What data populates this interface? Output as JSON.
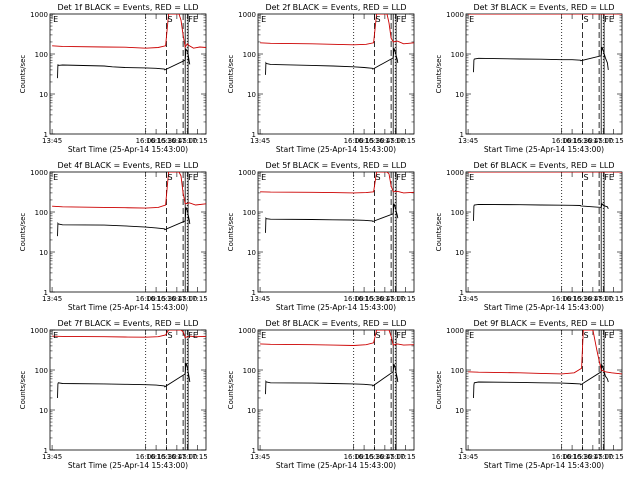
{
  "chart_data": {
    "type": "line",
    "y_scale": "log",
    "ylim": [
      1,
      1000
    ],
    "ytick_labels": [
      "1",
      "10",
      "100",
      "1000"
    ],
    "ylabel": "Counts/sec",
    "xlabel": "Start Time (25-Apr-14 15:43:00)",
    "x_range_hours": [
      13.7,
      17.45
    ],
    "xtick_hours": [
      13.75,
      16.0,
      16.25,
      16.5,
      16.75,
      17.0,
      17.25
    ],
    "xtick_labels": [
      "13:45",
      "16:00",
      "16:15",
      "16:30",
      "16:45",
      "17:00",
      "17:15"
    ],
    "grid": false,
    "colors": {
      "events": "#000000",
      "lld": "#cc0000",
      "axes": "#000000"
    },
    "panels": [
      {
        "title": "Det 1f BLACK = Events, RED = LLD",
        "markers": [
          {
            "label": "E",
            "x": 13.75
          },
          {
            "label": "S",
            "x": 16.5
          },
          {
            "label": "FE",
            "x": 17.0
          }
        ],
        "dotted_lines_x": [
          16.0,
          17.0
        ],
        "dashed_lines_x": [
          16.5,
          16.9
        ],
        "solid_lines_x": [
          16.95,
          17.02
        ],
        "series": [
          {
            "key": "events",
            "x": [
              13.88,
              13.89,
              13.9,
              14.0,
              15.0,
              15.2,
              15.5,
              16.0,
              16.25,
              16.45,
              16.46,
              16.95,
              16.97,
              17.0,
              17.02,
              17.05,
              17.06
            ],
            "y": [
              25,
              55,
              52,
              53,
              50,
              48,
              46,
              45,
              44,
              42,
              40,
              70,
              130,
              120,
              100,
              60,
              55
            ]
          },
          {
            "key": "lld",
            "x": [
              13.75,
              14.0,
              15.0,
              15.5,
              16.0,
              16.3,
              16.48,
              16.55,
              16.7,
              16.8,
              16.85,
              16.9,
              16.95,
              17.0,
              17.05,
              17.15,
              17.3,
              17.45
            ],
            "y": [
              160,
              155,
              150,
              148,
              140,
              145,
              160,
              1000,
              1000,
              1000,
              700,
              300,
              150,
              180,
              160,
              140,
              150,
              145
            ]
          }
        ]
      },
      {
        "title": "Det 2f BLACK = Events, RED = LLD",
        "markers": [
          {
            "label": "E",
            "x": 13.75
          },
          {
            "label": "S",
            "x": 16.5
          },
          {
            "label": "FE",
            "x": 17.0
          }
        ],
        "dotted_lines_x": [
          16.0,
          17.0
        ],
        "dashed_lines_x": [
          16.5,
          16.9
        ],
        "solid_lines_x": [
          16.95,
          17.02
        ],
        "series": [
          {
            "key": "events",
            "x": [
              13.88,
              13.89,
              13.9,
              14.0,
              15.0,
              15.5,
              16.0,
              16.25,
              16.45,
              16.46,
              16.95,
              16.97,
              17.0,
              17.05,
              17.06
            ],
            "y": [
              30,
              60,
              58,
              55,
              52,
              50,
              48,
              46,
              44,
              42,
              80,
              140,
              110,
              70,
              60
            ]
          },
          {
            "key": "lld",
            "x": [
              13.75,
              14.0,
              15.0,
              15.5,
              16.0,
              16.3,
              16.48,
              16.55,
              16.7,
              16.8,
              16.85,
              16.9,
              16.95,
              17.05,
              17.2,
              17.45
            ],
            "y": [
              190,
              185,
              180,
              175,
              170,
              175,
              190,
              1000,
              1000,
              1000,
              600,
              250,
              200,
              210,
              180,
              190
            ]
          }
        ]
      },
      {
        "title": "Det 3f BLACK = Events, RED = LLD",
        "markers": [
          {
            "label": "E",
            "x": 13.75
          },
          {
            "label": "S",
            "x": 16.5
          },
          {
            "label": "FE",
            "x": 17.0
          }
        ],
        "dotted_lines_x": [
          16.0,
          17.0
        ],
        "dashed_lines_x": [
          16.5,
          16.9
        ],
        "solid_lines_x": [
          16.95,
          17.02
        ],
        "series": [
          {
            "key": "events",
            "x": [
              13.88,
              13.89,
              13.9,
              14.0,
              15.0,
              15.5,
              16.0,
              16.25,
              16.45,
              16.46,
              16.95,
              16.97,
              17.0,
              17.05,
              17.1,
              17.12
            ],
            "y": [
              35,
              70,
              75,
              78,
              75,
              74,
              72,
              72,
              70,
              68,
              90,
              150,
              120,
              80,
              60,
              40
            ]
          },
          {
            "key": "lld",
            "x": [
              13.75,
              14.0,
              15.0,
              16.0,
              16.5,
              16.9,
              17.0,
              17.2,
              17.45
            ],
            "y": [
              1000,
              1000,
              1000,
              1000,
              1000,
              1000,
              1000,
              1000,
              1000
            ]
          }
        ]
      },
      {
        "title": "Det 4f BLACK = Events, RED = LLD",
        "markers": [
          {
            "label": "E",
            "x": 13.75
          },
          {
            "label": "S",
            "x": 16.5
          },
          {
            "label": "FE",
            "x": 17.0
          }
        ],
        "dotted_lines_x": [
          16.0,
          17.0
        ],
        "dashed_lines_x": [
          16.5,
          16.9
        ],
        "solid_lines_x": [
          16.95,
          17.02
        ],
        "series": [
          {
            "key": "events",
            "x": [
              13.88,
              13.89,
              13.9,
              14.0,
              15.0,
              15.5,
              16.0,
              16.25,
              16.45,
              16.46,
              16.95,
              16.97,
              17.0,
              17.05,
              17.06
            ],
            "y": [
              25,
              52,
              50,
              48,
              47,
              45,
              42,
              40,
              38,
              36,
              60,
              130,
              110,
              60,
              50
            ]
          },
          {
            "key": "lld",
            "x": [
              13.75,
              14.0,
              15.0,
              15.5,
              16.0,
              16.3,
              16.48,
              16.55,
              16.7,
              16.8,
              16.85,
              16.9,
              16.95,
              17.05,
              17.2,
              17.45
            ],
            "y": [
              140,
              135,
              130,
              128,
              125,
              130,
              150,
              1000,
              1000,
              1000,
              800,
              300,
              160,
              170,
              150,
              160
            ]
          }
        ]
      },
      {
        "title": "Det 5f BLACK = Events, RED = LLD",
        "markers": [
          {
            "label": "E",
            "x": 13.75
          },
          {
            "label": "S",
            "x": 16.5
          },
          {
            "label": "FE",
            "x": 17.0
          }
        ],
        "dotted_lines_x": [
          16.0,
          17.0
        ],
        "dashed_lines_x": [
          16.5,
          16.9
        ],
        "solid_lines_x": [
          16.95,
          17.02
        ],
        "series": [
          {
            "key": "events",
            "x": [
              13.88,
              13.89,
              13.9,
              14.0,
              15.0,
              15.5,
              16.0,
              16.25,
              16.45,
              16.46,
              16.95,
              16.97,
              17.0,
              17.05,
              17.06
            ],
            "y": [
              30,
              70,
              68,
              66,
              65,
              64,
              63,
              62,
              60,
              58,
              90,
              160,
              130,
              80,
              70
            ]
          },
          {
            "key": "lld",
            "x": [
              13.75,
              14.0,
              15.0,
              15.5,
              16.0,
              16.3,
              16.48,
              16.55,
              16.7,
              16.8,
              16.85,
              16.9,
              16.95,
              17.05,
              17.2,
              17.45
            ],
            "y": [
              320,
              315,
              310,
              305,
              300,
              305,
              320,
              1000,
              1000,
              1000,
              900,
              450,
              320,
              330,
              300,
              310
            ]
          }
        ]
      },
      {
        "title": "Det 6f BLACK = Events, RED = LLD",
        "markers": [
          {
            "label": "E",
            "x": 13.75
          },
          {
            "label": "S",
            "x": 16.5
          },
          {
            "label": "FE",
            "x": 17.0
          }
        ],
        "dotted_lines_x": [
          16.0,
          17.0
        ],
        "dashed_lines_x": [
          16.5,
          16.9
        ],
        "solid_lines_x": [
          16.95,
          17.02
        ],
        "series": [
          {
            "key": "events",
            "x": [
              13.88,
              13.89,
              13.9,
              14.0,
              15.0,
              15.5,
              16.0,
              16.25,
              16.45,
              16.46,
              16.95,
              16.97,
              17.0,
              17.05,
              17.1,
              17.12
            ],
            "y": [
              60,
              140,
              150,
              155,
              152,
              150,
              148,
              147,
              145,
              142,
              130,
              160,
              150,
              140,
              135,
              120
            ]
          },
          {
            "key": "lld",
            "x": [
              13.75,
              14.0,
              15.0,
              16.0,
              16.5,
              16.9,
              17.0,
              17.2,
              17.45
            ],
            "y": [
              1000,
              1000,
              1000,
              1000,
              1000,
              1000,
              1000,
              1000,
              1000
            ]
          }
        ]
      },
      {
        "title": "Det 7f BLACK = Events, RED = LLD",
        "markers": [
          {
            "label": "E",
            "x": 13.75
          },
          {
            "label": "S",
            "x": 16.5
          },
          {
            "label": "FE",
            "x": 17.0
          }
        ],
        "dotted_lines_x": [
          16.0,
          17.0
        ],
        "dashed_lines_x": [
          16.5,
          16.9
        ],
        "solid_lines_x": [
          16.95,
          17.02
        ],
        "series": [
          {
            "key": "events",
            "x": [
              13.88,
              13.89,
              13.9,
              14.0,
              15.0,
              15.5,
              16.0,
              16.25,
              16.45,
              16.46,
              16.95,
              16.97,
              17.0,
              17.05,
              17.06
            ],
            "y": [
              20,
              45,
              48,
              46,
              45,
              44,
              43,
              42,
              40,
              38,
              80,
              150,
              120,
              60,
              50
            ]
          },
          {
            "key": "lld",
            "x": [
              13.75,
              14.0,
              15.0,
              15.5,
              16.0,
              16.3,
              16.48,
              16.55,
              16.7,
              16.8,
              16.85,
              16.9,
              16.95,
              17.05,
              17.2,
              17.45
            ],
            "y": [
              700,
              690,
              680,
              670,
              660,
              680,
              750,
              1000,
              1000,
              1000,
              1000,
              900,
              650,
              700,
              680,
              690
            ]
          }
        ]
      },
      {
        "title": "Det 8f BLACK = Events, RED = LLD",
        "markers": [
          {
            "label": "E",
            "x": 13.75
          },
          {
            "label": "S",
            "x": 16.5
          },
          {
            "label": "FE",
            "x": 17.0
          }
        ],
        "dotted_lines_x": [
          16.0,
          17.0
        ],
        "dashed_lines_x": [
          16.5,
          16.9
        ],
        "solid_lines_x": [
          16.95,
          17.02
        ],
        "series": [
          {
            "key": "events",
            "x": [
              13.88,
              13.89,
              13.9,
              14.0,
              15.0,
              15.5,
              16.0,
              16.25,
              16.45,
              16.46,
              16.95,
              16.97,
              17.0,
              17.05,
              17.06
            ],
            "y": [
              25,
              52,
              50,
              48,
              47,
              46,
              45,
              44,
              42,
              40,
              90,
              140,
              110,
              60,
              50
            ]
          },
          {
            "key": "lld",
            "x": [
              13.75,
              14.0,
              15.0,
              15.5,
              16.0,
              16.3,
              16.48,
              16.55,
              16.7,
              16.8,
              16.85,
              16.9,
              16.95,
              17.05,
              17.2,
              17.45
            ],
            "y": [
              450,
              440,
              430,
              420,
              410,
              430,
              480,
              1000,
              1000,
              1000,
              1000,
              700,
              420,
              450,
              420,
              430
            ]
          }
        ]
      },
      {
        "title": "Det 9f BLACK = Events, RED = LLD",
        "markers": [
          {
            "label": "E",
            "x": 13.75
          },
          {
            "label": "S",
            "x": 16.5
          },
          {
            "label": "FE",
            "x": 17.0
          }
        ],
        "dotted_lines_x": [
          16.0,
          17.0
        ],
        "dashed_lines_x": [
          16.5,
          16.9
        ],
        "solid_lines_x": [
          16.95,
          17.02
        ],
        "series": [
          {
            "key": "events",
            "x": [
              13.88,
              13.89,
              13.9,
              14.0,
              15.0,
              15.5,
              16.0,
              16.25,
              16.45,
              16.46,
              16.95,
              16.97,
              17.0,
              17.05,
              17.1,
              17.12
            ],
            "y": [
              20,
              42,
              48,
              50,
              49,
              48,
              47,
              46,
              45,
              43,
              90,
              130,
              110,
              70,
              60,
              50
            ]
          },
          {
            "key": "lld",
            "x": [
              13.75,
              14.0,
              15.0,
              15.5,
              16.0,
              16.3,
              16.48,
              16.52,
              16.62,
              16.75,
              16.85,
              16.95,
              17.05,
              17.2,
              17.45
            ],
            "y": [
              90,
              88,
              85,
              82,
              80,
              85,
              110,
              1000,
              1000,
              1000,
              300,
              100,
              90,
              85,
              80
            ]
          }
        ]
      }
    ]
  }
}
